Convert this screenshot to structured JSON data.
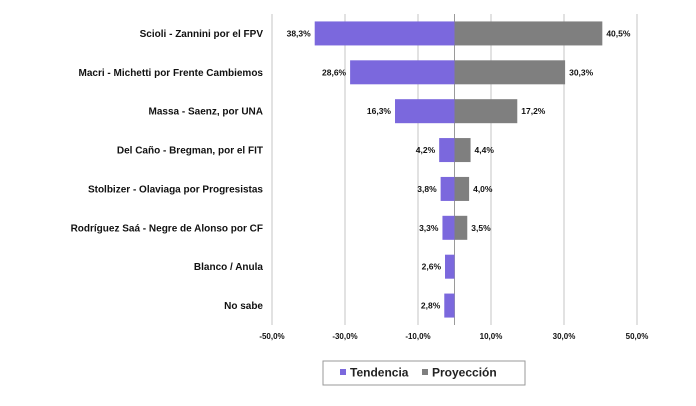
{
  "chart_data": {
    "type": "bar",
    "orientation": "horizontal",
    "categories": [
      "Scioli - Zannini por el FPV",
      "Macri - Michetti por Frente Cambiemos",
      "Massa - Saenz, por UNA",
      "Del Caño - Bregman, por el FIT",
      "Stolbizer - Olaviaga por Progresistas",
      "Rodríguez Saá - Negre de Alonso por CF",
      "Blanco / Anula",
      "No sabe"
    ],
    "series": [
      {
        "name": "Tendencia",
        "color": "#7b68dd",
        "values": [
          -38.3,
          -28.6,
          -16.3,
          -4.2,
          -3.8,
          -3.3,
          -2.6,
          -2.8
        ],
        "labels": [
          "38,3%",
          "28,6%",
          "16,3%",
          "4,2%",
          "3,8%",
          "3,3%",
          "2,6%",
          "2,8%"
        ]
      },
      {
        "name": "Proyección",
        "color": "#7f7f7f",
        "values": [
          40.5,
          30.3,
          17.2,
          4.4,
          4.0,
          3.5,
          null,
          null
        ],
        "labels": [
          "40,5%",
          "30,3%",
          "17,2%",
          "4,4%",
          "4,0%",
          "3,5%",
          "",
          ""
        ]
      }
    ],
    "xlim": [
      -50,
      50
    ],
    "ticks": [
      -50,
      -30,
      -10,
      10,
      30,
      50
    ],
    "tick_labels": [
      "-50,0%",
      "-30,0%",
      "-10,0%",
      "10,0%",
      "30,0%",
      "50,0%"
    ],
    "grid": true,
    "legend_position": "bottom",
    "title": "",
    "xlabel": "",
    "ylabel": ""
  }
}
